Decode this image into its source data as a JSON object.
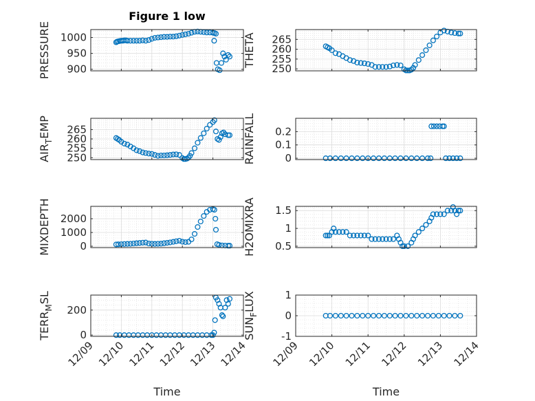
{
  "figure": {
    "title": "Figure 1 low",
    "marker_color": "#0072BD"
  },
  "chart_data": [
    {
      "type": "scatter",
      "ylabel": "PRESSURE",
      "xlabel": "",
      "xlim": [
        "12/09",
        "12/14"
      ],
      "ylim": [
        895,
        1025
      ],
      "yticks": [
        900,
        950,
        1000
      ],
      "xticks": [],
      "grid": true,
      "points": [
        [
          9.83,
          985
        ],
        [
          9.86,
          987
        ],
        [
          9.9,
          988
        ],
        [
          9.95,
          989
        ],
        [
          10.0,
          990
        ],
        [
          10.05,
          990
        ],
        [
          10.1,
          991
        ],
        [
          10.15,
          991
        ],
        [
          10.2,
          990
        ],
        [
          10.3,
          990
        ],
        [
          10.4,
          990
        ],
        [
          10.5,
          990
        ],
        [
          10.6,
          990
        ],
        [
          10.7,
          991
        ],
        [
          10.8,
          990
        ],
        [
          10.9,
          992
        ],
        [
          11.0,
          996
        ],
        [
          11.1,
          999
        ],
        [
          11.2,
          1000
        ],
        [
          11.3,
          1001
        ],
        [
          11.4,
          1002
        ],
        [
          11.5,
          1002
        ],
        [
          11.6,
          1003
        ],
        [
          11.7,
          1003
        ],
        [
          11.8,
          1004
        ],
        [
          11.9,
          1006
        ],
        [
          12.0,
          1008
        ],
        [
          12.1,
          1010
        ],
        [
          12.2,
          1012
        ],
        [
          12.3,
          1015
        ],
        [
          12.4,
          1018
        ],
        [
          12.5,
          1019
        ],
        [
          12.6,
          1018
        ],
        [
          12.7,
          1017
        ],
        [
          12.8,
          1016
        ],
        [
          12.9,
          1016
        ],
        [
          13.0,
          1015
        ],
        [
          13.05,
          1014
        ],
        [
          13.1,
          1012
        ],
        [
          13.04,
          990
        ],
        [
          13.12,
          920
        ],
        [
          13.16,
          900
        ],
        [
          13.22,
          897
        ],
        [
          13.28,
          920
        ],
        [
          13.33,
          950
        ],
        [
          13.38,
          940
        ],
        [
          13.43,
          930
        ],
        [
          13.5,
          945
        ],
        [
          13.55,
          940
        ]
      ]
    },
    {
      "type": "scatter",
      "ylabel": "THETA",
      "xlabel": "",
      "xlim": [
        "12/09",
        "12/14"
      ],
      "ylim": [
        249,
        270
      ],
      "yticks": [
        250,
        255,
        260,
        265
      ],
      "xticks": [],
      "grid": true,
      "points": [
        [
          9.83,
          261.5
        ],
        [
          9.88,
          261
        ],
        [
          9.93,
          260.5
        ],
        [
          10.0,
          259.5
        ],
        [
          10.1,
          258
        ],
        [
          10.2,
          257.5
        ],
        [
          10.3,
          256.5
        ],
        [
          10.4,
          255.5
        ],
        [
          10.5,
          254.5
        ],
        [
          10.6,
          254
        ],
        [
          10.7,
          253.2
        ],
        [
          10.8,
          253
        ],
        [
          10.9,
          252.8
        ],
        [
          11.0,
          252.5
        ],
        [
          11.1,
          252
        ],
        [
          11.2,
          251
        ],
        [
          11.3,
          251
        ],
        [
          11.4,
          251
        ],
        [
          11.5,
          251
        ],
        [
          11.6,
          251.2
        ],
        [
          11.7,
          251.8
        ],
        [
          11.8,
          252
        ],
        [
          11.9,
          251.8
        ],
        [
          12.0,
          249.8
        ],
        [
          12.05,
          249.2
        ],
        [
          12.1,
          249.2
        ],
        [
          12.15,
          249.2
        ],
        [
          12.2,
          249.6
        ],
        [
          12.25,
          250.5
        ],
        [
          12.3,
          252
        ],
        [
          12.4,
          254.5
        ],
        [
          12.5,
          257
        ],
        [
          12.6,
          259.5
        ],
        [
          12.7,
          262
        ],
        [
          12.8,
          264.5
        ],
        [
          12.9,
          266.5
        ],
        [
          13.0,
          268.5
        ],
        [
          13.1,
          269.5
        ],
        [
          13.2,
          269
        ],
        [
          13.3,
          268.5
        ],
        [
          13.4,
          268.2
        ],
        [
          13.5,
          268
        ],
        [
          13.55,
          268
        ]
      ]
    },
    {
      "type": "scatter",
      "ylabel": "AIR_TEMP",
      "ylabel_main": "AIR",
      "ylabel_sub": "T",
      "ylabel_rest": "EMP",
      "xlabel": "",
      "xlim": [
        "12/09",
        "12/14"
      ],
      "ylim": [
        249,
        271
      ],
      "yticks": [
        250,
        255,
        260,
        265
      ],
      "xticks": [],
      "grid": true,
      "points": [
        [
          9.83,
          260.5
        ],
        [
          9.88,
          260
        ],
        [
          9.93,
          259.5
        ],
        [
          10.0,
          258.5
        ],
        [
          10.1,
          257.5
        ],
        [
          10.2,
          257
        ],
        [
          10.3,
          256
        ],
        [
          10.4,
          255
        ],
        [
          10.5,
          254
        ],
        [
          10.6,
          253.5
        ],
        [
          10.7,
          252.8
        ],
        [
          10.8,
          252.5
        ],
        [
          10.9,
          252.2
        ],
        [
          11.0,
          252
        ],
        [
          11.1,
          251.5
        ],
        [
          11.2,
          251
        ],
        [
          11.3,
          251.2
        ],
        [
          11.4,
          251.2
        ],
        [
          11.5,
          251.3
        ],
        [
          11.6,
          251.5
        ],
        [
          11.7,
          251.7
        ],
        [
          11.8,
          251.8
        ],
        [
          11.9,
          251.5
        ],
        [
          12.0,
          249.8
        ],
        [
          12.05,
          249.3
        ],
        [
          12.1,
          249.3
        ],
        [
          12.15,
          249.5
        ],
        [
          12.2,
          250
        ],
        [
          12.25,
          251
        ],
        [
          12.3,
          252.5
        ],
        [
          12.4,
          255
        ],
        [
          12.5,
          258
        ],
        [
          12.6,
          260.5
        ],
        [
          12.7,
          263
        ],
        [
          12.8,
          265.5
        ],
        [
          12.9,
          267.5
        ],
        [
          13.0,
          269
        ],
        [
          13.05,
          270
        ],
        [
          13.1,
          264
        ],
        [
          13.15,
          260
        ],
        [
          13.2,
          259.5
        ],
        [
          13.25,
          261
        ],
        [
          13.3,
          263
        ],
        [
          13.35,
          263.5
        ],
        [
          13.4,
          262.5
        ],
        [
          13.5,
          262
        ],
        [
          13.55,
          262
        ]
      ]
    },
    {
      "type": "scatter",
      "ylabel": "RAINFALL",
      "xlabel": "",
      "xlim": [
        "12/09",
        "12/14"
      ],
      "ylim": [
        -0.01,
        0.3
      ],
      "yticks": [
        0,
        0.1,
        0.2
      ],
      "xticks": [],
      "grid": true,
      "points": [
        [
          9.83,
          0
        ],
        [
          9.95,
          0
        ],
        [
          10.1,
          0
        ],
        [
          10.25,
          0
        ],
        [
          10.4,
          0
        ],
        [
          10.55,
          0
        ],
        [
          10.7,
          0
        ],
        [
          10.85,
          0
        ],
        [
          11.0,
          0
        ],
        [
          11.15,
          0
        ],
        [
          11.3,
          0
        ],
        [
          11.45,
          0
        ],
        [
          11.6,
          0
        ],
        [
          11.75,
          0
        ],
        [
          11.9,
          0
        ],
        [
          12.05,
          0
        ],
        [
          12.2,
          0
        ],
        [
          12.35,
          0
        ],
        [
          12.5,
          0
        ],
        [
          12.65,
          0
        ],
        [
          12.73,
          0
        ],
        [
          12.75,
          0.24
        ],
        [
          12.82,
          0.24
        ],
        [
          12.9,
          0.24
        ],
        [
          12.98,
          0.24
        ],
        [
          13.06,
          0.24
        ],
        [
          13.1,
          0.24
        ],
        [
          13.15,
          0
        ],
        [
          13.25,
          0
        ],
        [
          13.35,
          0
        ],
        [
          13.45,
          0
        ],
        [
          13.55,
          0
        ]
      ]
    },
    {
      "type": "scatter",
      "ylabel": "MIXDEPTH",
      "xlabel": "",
      "xlim": [
        "12/09",
        "12/14"
      ],
      "ylim": [
        -100,
        2900
      ],
      "yticks": [
        0,
        1000,
        2000
      ],
      "xticks": [],
      "grid": true,
      "points": [
        [
          9.83,
          130
        ],
        [
          9.9,
          140
        ],
        [
          10.0,
          150
        ],
        [
          10.1,
          160
        ],
        [
          10.2,
          170
        ],
        [
          10.3,
          180
        ],
        [
          10.4,
          200
        ],
        [
          10.5,
          220
        ],
        [
          10.6,
          240
        ],
        [
          10.7,
          260
        ],
        [
          10.8,
          270
        ],
        [
          10.9,
          200
        ],
        [
          11.0,
          180
        ],
        [
          11.1,
          170
        ],
        [
          11.2,
          180
        ],
        [
          11.3,
          190
        ],
        [
          11.4,
          220
        ],
        [
          11.5,
          250
        ],
        [
          11.6,
          280
        ],
        [
          11.7,
          320
        ],
        [
          11.8,
          360
        ],
        [
          11.9,
          400
        ],
        [
          12.0,
          330
        ],
        [
          12.1,
          300
        ],
        [
          12.2,
          320
        ],
        [
          12.3,
          500
        ],
        [
          12.4,
          900
        ],
        [
          12.5,
          1400
        ],
        [
          12.6,
          1800
        ],
        [
          12.7,
          2200
        ],
        [
          12.8,
          2500
        ],
        [
          12.9,
          2650
        ],
        [
          13.0,
          2700
        ],
        [
          13.05,
          2650
        ],
        [
          13.08,
          2000
        ],
        [
          13.1,
          1200
        ],
        [
          13.14,
          150
        ],
        [
          13.2,
          100
        ],
        [
          13.3,
          60
        ],
        [
          13.4,
          50
        ],
        [
          13.5,
          40
        ],
        [
          13.55,
          40
        ]
      ]
    },
    {
      "type": "scatter",
      "ylabel": "H2OMIXRA",
      "xlabel": "",
      "xlim": [
        "12/09",
        "12/14"
      ],
      "ylim": [
        0.46,
        1.62
      ],
      "yticks": [
        0.5,
        1,
        1.5
      ],
      "xticks": [],
      "grid": true,
      "points": [
        [
          9.83,
          0.8
        ],
        [
          9.88,
          0.8
        ],
        [
          9.93,
          0.8
        ],
        [
          10.0,
          0.9
        ],
        [
          10.05,
          1.0
        ],
        [
          10.1,
          0.9
        ],
        [
          10.2,
          0.9
        ],
        [
          10.3,
          0.9
        ],
        [
          10.4,
          0.9
        ],
        [
          10.5,
          0.8
        ],
        [
          10.6,
          0.8
        ],
        [
          10.7,
          0.8
        ],
        [
          10.8,
          0.8
        ],
        [
          10.9,
          0.8
        ],
        [
          11.0,
          0.8
        ],
        [
          11.1,
          0.7
        ],
        [
          11.2,
          0.7
        ],
        [
          11.3,
          0.7
        ],
        [
          11.4,
          0.7
        ],
        [
          11.5,
          0.7
        ],
        [
          11.6,
          0.7
        ],
        [
          11.7,
          0.7
        ],
        [
          11.8,
          0.8
        ],
        [
          11.85,
          0.7
        ],
        [
          11.9,
          0.6
        ],
        [
          11.95,
          0.5
        ],
        [
          12.0,
          0.5
        ],
        [
          12.1,
          0.5
        ],
        [
          12.2,
          0.6
        ],
        [
          12.25,
          0.7
        ],
        [
          12.3,
          0.8
        ],
        [
          12.4,
          0.9
        ],
        [
          12.5,
          1.0
        ],
        [
          12.6,
          1.1
        ],
        [
          12.7,
          1.2
        ],
        [
          12.75,
          1.3
        ],
        [
          12.8,
          1.4
        ],
        [
          12.9,
          1.4
        ],
        [
          13.0,
          1.4
        ],
        [
          13.1,
          1.4
        ],
        [
          13.2,
          1.5
        ],
        [
          13.3,
          1.5
        ],
        [
          13.35,
          1.6
        ],
        [
          13.4,
          1.5
        ],
        [
          13.45,
          1.4
        ],
        [
          13.5,
          1.5
        ],
        [
          13.55,
          1.5
        ]
      ]
    },
    {
      "type": "scatter",
      "ylabel": "TERR_MSL",
      "ylabel_main": "TERR",
      "ylabel_sub": "M",
      "ylabel_rest": "SL",
      "xlabel": "Time",
      "xlim": [
        "12/09",
        "12/14"
      ],
      "ylim": [
        -10,
        320
      ],
      "yticks": [
        0,
        200
      ],
      "xticks": [
        "12/09",
        "12/10",
        "12/11",
        "12/12",
        "12/13",
        "12/14"
      ],
      "grid": true,
      "points": [
        [
          9.83,
          0
        ],
        [
          9.95,
          0
        ],
        [
          10.1,
          0
        ],
        [
          10.25,
          0
        ],
        [
          10.4,
          0
        ],
        [
          10.55,
          0
        ],
        [
          10.7,
          0
        ],
        [
          10.85,
          0
        ],
        [
          11.0,
          0
        ],
        [
          11.15,
          0
        ],
        [
          11.3,
          0
        ],
        [
          11.45,
          0
        ],
        [
          11.6,
          0
        ],
        [
          11.75,
          0
        ],
        [
          11.9,
          0
        ],
        [
          12.05,
          0
        ],
        [
          12.2,
          0
        ],
        [
          12.35,
          0
        ],
        [
          12.5,
          0
        ],
        [
          12.65,
          0
        ],
        [
          12.8,
          0
        ],
        [
          12.95,
          0
        ],
        [
          13.0,
          0
        ],
        [
          13.04,
          20
        ],
        [
          13.07,
          120
        ],
        [
          13.1,
          300
        ],
        [
          13.15,
          280
        ],
        [
          13.2,
          250
        ],
        [
          13.25,
          220
        ],
        [
          13.3,
          160
        ],
        [
          13.33,
          150
        ],
        [
          13.4,
          220
        ],
        [
          13.45,
          280
        ],
        [
          13.5,
          250
        ],
        [
          13.55,
          290
        ]
      ]
    },
    {
      "type": "scatter",
      "ylabel": "SUN_FLUX",
      "ylabel_main": "SUN",
      "ylabel_sub": "F",
      "ylabel_rest": "LUX",
      "xlabel": "Time",
      "xlim": [
        "12/09",
        "12/14"
      ],
      "ylim": [
        -1,
        1
      ],
      "yticks": [
        -1,
        0,
        1
      ],
      "xticks": [
        "12/09",
        "12/10",
        "12/11",
        "12/12",
        "12/13",
        "12/14"
      ],
      "grid": true,
      "points": [
        [
          9.83,
          0
        ],
        [
          9.95,
          0
        ],
        [
          10.1,
          0
        ],
        [
          10.25,
          0
        ],
        [
          10.4,
          0
        ],
        [
          10.55,
          0
        ],
        [
          10.7,
          0
        ],
        [
          10.85,
          0
        ],
        [
          11.0,
          0
        ],
        [
          11.15,
          0
        ],
        [
          11.3,
          0
        ],
        [
          11.45,
          0
        ],
        [
          11.6,
          0
        ],
        [
          11.75,
          0
        ],
        [
          11.9,
          0
        ],
        [
          12.05,
          0
        ],
        [
          12.2,
          0
        ],
        [
          12.35,
          0
        ],
        [
          12.5,
          0
        ],
        [
          12.65,
          0
        ],
        [
          12.8,
          0
        ],
        [
          12.95,
          0
        ],
        [
          13.1,
          0
        ],
        [
          13.25,
          0
        ],
        [
          13.4,
          0
        ],
        [
          13.55,
          0
        ]
      ]
    }
  ]
}
